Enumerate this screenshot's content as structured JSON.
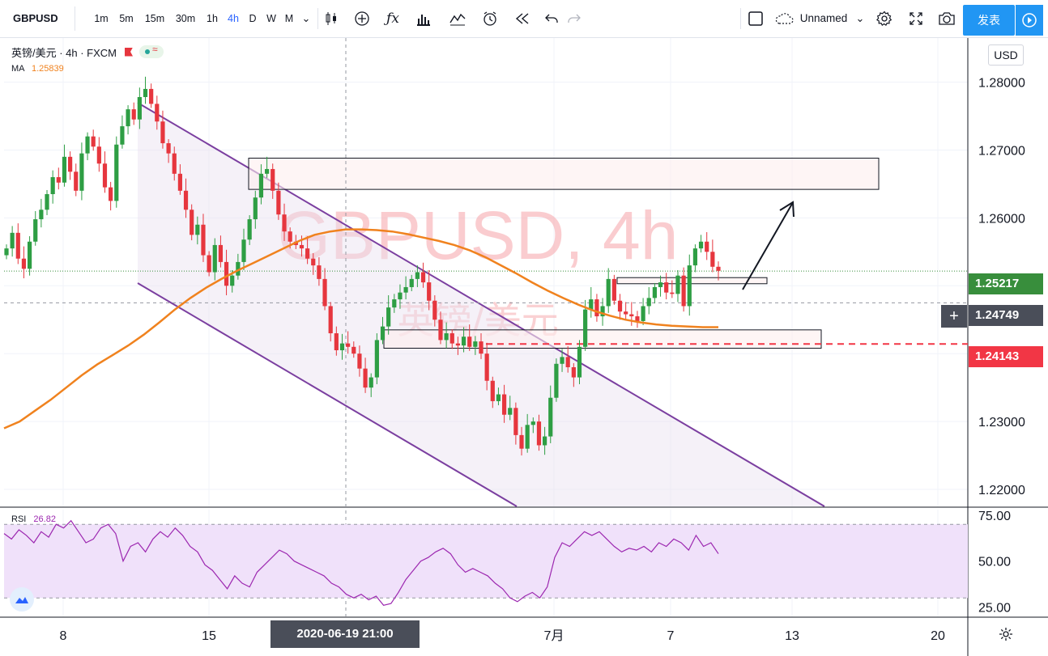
{
  "toolbar": {
    "symbol": "GBPUSD",
    "intervals": [
      "1m",
      "5m",
      "15m",
      "30m",
      "1h",
      "4h",
      "D",
      "W",
      "M"
    ],
    "active_interval": "4h",
    "layout_name": "Unnamed",
    "publish_label": "发表",
    "icons": [
      "chevron-down-icon",
      "candles-icon",
      "plus-circle-icon",
      "fx-icon",
      "bars-icon",
      "templates-icon",
      "alarm-icon",
      "replay-icon",
      "undo-icon",
      "redo-icon",
      "square-icon",
      "cloud-icon",
      "gear-icon",
      "fullscreen-icon",
      "camera-icon",
      "play-icon"
    ]
  },
  "legend": {
    "instrument": "英镑/美元 · 4h · FXCM",
    "ma_label": "MA",
    "ma_value": "1.25839",
    "rsi_label": "RSI",
    "rsi_value": "26.82"
  },
  "currency_button": "USD",
  "watermark": {
    "line1": "GBPUSD, 4h",
    "line2": "英镑/美元"
  },
  "crosshair_date": "2020-06-19   21:00",
  "price_tags": [
    {
      "label": "1.25217",
      "color": "#388e3c"
    },
    {
      "label": "1.24749",
      "color": "#4a4e59"
    },
    {
      "label": "1.24143",
      "color": "#f23645"
    }
  ],
  "colors": {
    "up": "#26a69a",
    "up_candle": "#2e9e44",
    "down_candle": "#e6363e",
    "ma": "#f0821e",
    "channel": "#7b3fa0",
    "rsi": "#9c27b0",
    "rsi_band": "#f0e1fa",
    "watermark": "#f5a3a8",
    "support": "#f23645"
  },
  "chart_data": [
    {
      "type": "candlestick",
      "title": "GBPUSD, 4h",
      "ylim": [
        1.2175,
        1.2865
      ],
      "y_ticks": [
        "1.28000",
        "1.27000",
        "1.26000",
        "1.25000",
        "1.24000",
        "1.23000",
        "1.22000"
      ],
      "x_ticks": [
        "8",
        "15",
        "7月",
        "7",
        "13",
        "20"
      ],
      "close_series": [
        1.2555,
        1.2578,
        1.254,
        1.2525,
        1.2565,
        1.2598,
        1.2612,
        1.2635,
        1.266,
        1.2652,
        1.269,
        1.2668,
        1.264,
        1.2695,
        1.272,
        1.2705,
        1.268,
        1.2645,
        1.2625,
        1.2708,
        1.2735,
        1.276,
        1.2745,
        1.2778,
        1.279,
        1.2768,
        1.2742,
        1.271,
        1.2695,
        1.2665,
        1.264,
        1.2612,
        1.2575,
        1.259,
        1.2545,
        1.252,
        1.256,
        1.2535,
        1.25,
        1.2515,
        1.2535,
        1.2568,
        1.2598,
        1.263,
        1.2665,
        1.2672,
        1.264,
        1.2605,
        1.258,
        1.2565,
        1.256,
        1.2555,
        1.254,
        1.253,
        1.251,
        1.247,
        1.243,
        1.2405,
        1.2415,
        1.241,
        1.24,
        1.2378,
        1.235,
        1.2365,
        1.242,
        1.244,
        1.2468,
        1.248,
        1.249,
        1.2498,
        1.251,
        1.252,
        1.2505,
        1.2478,
        1.245,
        1.242,
        1.243,
        1.2415,
        1.2412,
        1.2425,
        1.241,
        1.2418,
        1.24,
        1.236,
        1.233,
        1.234,
        1.231,
        1.232,
        1.228,
        1.226,
        1.2295,
        1.23,
        1.2265,
        1.2278,
        1.2335,
        1.2385,
        1.2395,
        1.238,
        1.2365,
        1.241,
        1.2465,
        1.248,
        1.2455,
        1.247,
        1.251,
        1.2478,
        1.2462,
        1.2458,
        1.2455,
        1.2448,
        1.247,
        1.2482,
        1.2498,
        1.2505,
        1.249,
        1.2488,
        1.2515,
        1.247,
        1.253,
        1.2555,
        1.2565,
        1.255,
        1.2528,
        1.2522
      ],
      "ma_series": [
        1.229,
        1.23,
        1.2316,
        1.2332,
        1.235,
        1.2368,
        1.2384,
        1.2398,
        1.2412,
        1.2428,
        1.2446,
        1.2465,
        1.2482,
        1.2497,
        1.251,
        1.2522,
        1.2533,
        1.2544,
        1.2555,
        1.2566,
        1.2575,
        1.258,
        1.2583,
        1.2583,
        1.2582,
        1.258,
        1.2576,
        1.2571,
        1.2566,
        1.256,
        1.2552,
        1.2542,
        1.253,
        1.2518,
        1.2505,
        1.2493,
        1.2482,
        1.2472,
        1.2463,
        1.2456,
        1.245,
        1.2446,
        1.2443,
        1.2441,
        1.244,
        1.2439,
        1.2439
      ],
      "support_level": 1.24143,
      "last_price": 1.25217,
      "crosshair_price": 1.24749,
      "zones": [
        {
          "top": 1.2688,
          "bottom": 1.2642
        },
        {
          "top": 1.2512,
          "bottom": 1.2503
        },
        {
          "top": 1.2435,
          "bottom": 1.2408
        }
      ]
    },
    {
      "type": "line",
      "title": "RSI",
      "ylim": [
        20,
        78
      ],
      "y_ticks": [
        "75.00",
        "50.00",
        "25.00"
      ],
      "band": [
        30,
        70
      ],
      "series": [
        {
          "name": "RSI",
          "values": [
            65,
            62,
            67,
            64,
            60,
            66,
            63,
            70,
            68,
            72,
            66,
            60,
            62,
            68,
            70,
            65,
            50,
            58,
            60,
            55,
            62,
            66,
            63,
            68,
            64,
            58,
            55,
            48,
            45,
            40,
            35,
            42,
            38,
            36,
            44,
            48,
            52,
            56,
            54,
            50,
            48,
            46,
            44,
            42,
            38,
            36,
            32,
            30,
            32,
            29,
            31,
            26,
            27,
            33,
            40,
            45,
            50,
            52,
            55,
            57,
            54,
            48,
            44,
            46,
            44,
            42,
            38,
            35,
            30,
            28,
            31,
            33,
            30,
            36,
            52,
            60,
            58,
            62,
            66,
            64,
            66,
            62,
            58,
            55,
            57,
            56,
            58,
            55,
            60,
            58,
            62,
            60,
            56,
            64,
            58,
            60,
            54
          ]
        }
      ]
    }
  ]
}
